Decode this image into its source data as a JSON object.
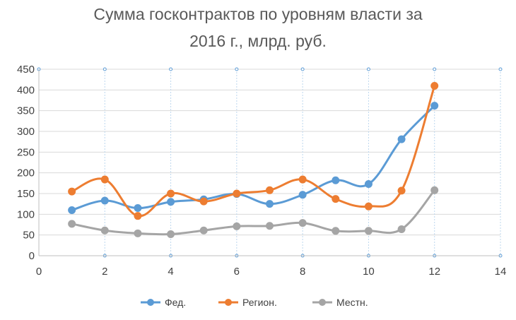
{
  "chart_data": {
    "type": "line",
    "title_line1": "Сумма госконтрактов по уровням власти за",
    "title_line2": "2016 г., млрд. руб.",
    "xlim": [
      0,
      14
    ],
    "ylim": [
      0,
      450
    ],
    "x_ticks": [
      0,
      2,
      4,
      6,
      8,
      10,
      12,
      14
    ],
    "y_ticks": [
      0,
      50,
      100,
      150,
      200,
      250,
      300,
      350,
      400,
      450
    ],
    "grid": "vertical-dashed-and-horizontal",
    "legend_position": "bottom",
    "x": [
      1,
      2,
      3,
      4,
      5,
      6,
      7,
      8,
      9,
      10,
      11,
      12
    ],
    "series": [
      {
        "name": "Фед.",
        "color": "#5B9BD5",
        "values": [
          110,
          133,
          115,
          130,
          136,
          149,
          125,
          147,
          182,
          173,
          281,
          362
        ]
      },
      {
        "name": "Регион.",
        "color": "#ED7D31",
        "values": [
          155,
          184,
          96,
          150,
          131,
          150,
          158,
          184,
          137,
          119,
          157,
          410
        ]
      },
      {
        "name": "Местн.",
        "color": "#A5A5A5",
        "values": [
          77,
          61,
          54,
          52,
          61,
          71,
          72,
          79,
          60,
          60,
          64,
          158
        ]
      }
    ]
  }
}
